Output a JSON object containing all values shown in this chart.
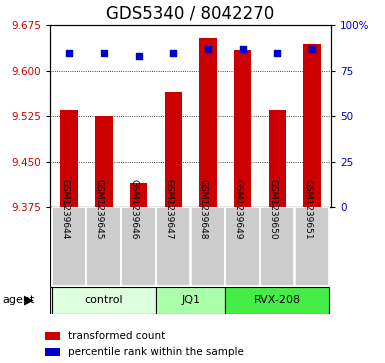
{
  "title": "GDS5340 / 8042270",
  "samples": [
    "GSM1239644",
    "GSM1239645",
    "GSM1239646",
    "GSM1239647",
    "GSM1239648",
    "GSM1239649",
    "GSM1239650",
    "GSM1239651"
  ],
  "bar_values": [
    9.535,
    9.525,
    9.415,
    9.565,
    9.655,
    9.635,
    9.535,
    9.645
  ],
  "percentile_values": [
    85,
    85,
    83,
    85,
    87,
    87,
    85,
    87
  ],
  "bar_color": "#cc0000",
  "dot_color": "#0000cc",
  "ylim_left": [
    9.375,
    9.675
  ],
  "ylim_right": [
    0,
    100
  ],
  "yticks_left": [
    9.375,
    9.45,
    9.525,
    9.6,
    9.675
  ],
  "yticks_right": [
    0,
    25,
    50,
    75,
    100
  ],
  "groups": [
    {
      "label": "control",
      "start": 0,
      "end": 3,
      "color": "#ddffdd"
    },
    {
      "label": "JQ1",
      "start": 3,
      "end": 5,
      "color": "#aaffaa"
    },
    {
      "label": "RVX-208",
      "start": 5,
      "end": 8,
      "color": "#44ee44"
    }
  ],
  "bar_width": 0.5,
  "fig_bg": "#ffffff",
  "plot_bg": "#ffffff",
  "title_fontsize": 12,
  "tick_fontsize": 7.5,
  "sample_fontsize": 6.5,
  "group_fontsize": 8,
  "legend_fontsize": 7.5,
  "agent_fontsize": 8
}
